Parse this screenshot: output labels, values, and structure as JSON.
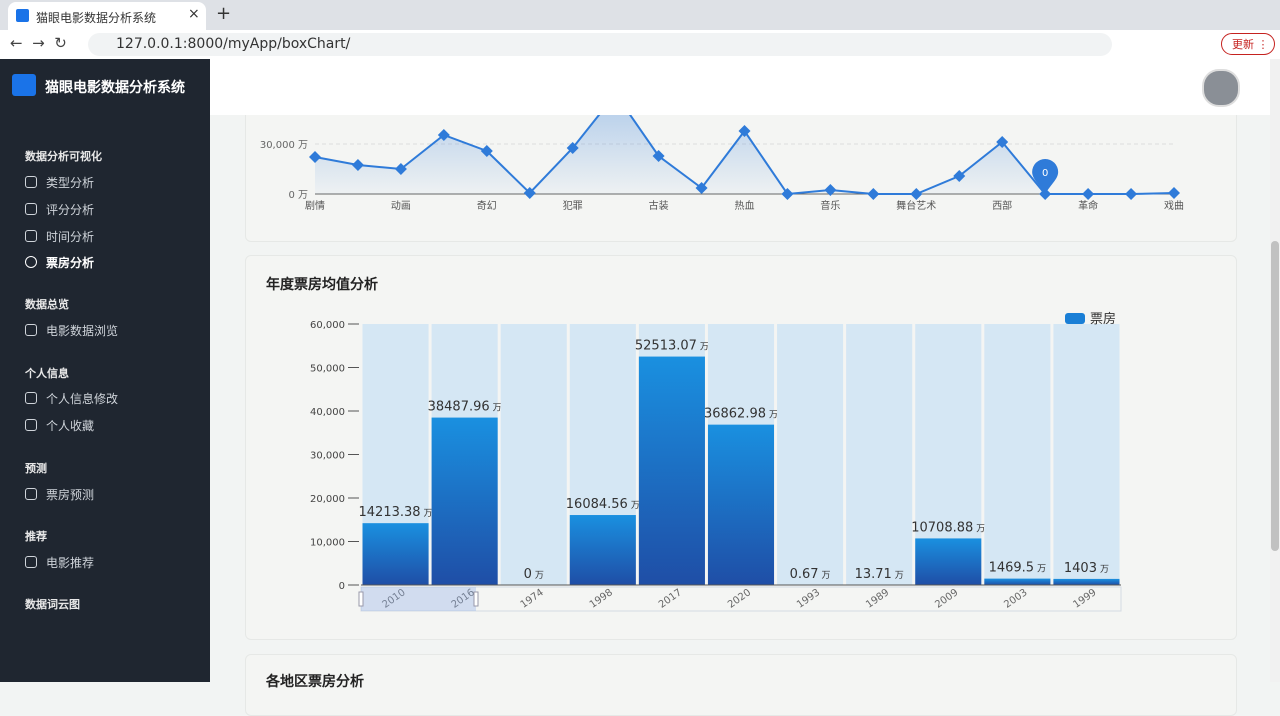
{
  "browser": {
    "tab_title": "猫眼电影数据分析系统",
    "url": "127.0.0.1:8000/myApp/boxChart/",
    "update_button": "更新"
  },
  "sidebar": {
    "brand": "猫眼电影数据分析系统",
    "sections": [
      {
        "title": "数据分析可视化",
        "items": [
          "类型分析",
          "评分分析",
          "时间分析",
          "票房分析"
        ]
      },
      {
        "title": "数据总览",
        "items": [
          "电影数据浏览"
        ]
      },
      {
        "title": "个人信息",
        "items": [
          "个人信息修改",
          "个人收藏"
        ]
      },
      {
        "title": "预测",
        "items": [
          "票房预测"
        ]
      },
      {
        "title": "推荐",
        "items": [
          "电影推荐"
        ]
      },
      {
        "title": "数据词云图",
        "items": []
      }
    ]
  },
  "chart_data": [
    {
      "type": "line",
      "color": "#2f7bd9",
      "categories": [
        "剧情",
        null,
        "动画",
        null,
        "奇幻",
        null,
        "犯罪",
        null,
        "古装",
        null,
        "热血",
        null,
        "音乐",
        null,
        "舞台艺术",
        null,
        "西部",
        null,
        "革命",
        null,
        "戏曲"
      ],
      "values": [
        22200,
        17400,
        15000,
        35400,
        25800,
        600,
        27600,
        60000,
        22800,
        3600,
        37800,
        0,
        2400,
        0,
        0,
        10800,
        31200,
        0,
        0,
        0,
        600
      ],
      "ylim": [
        0,
        48600
      ],
      "yticks": [
        {
          "value": 0,
          "label": "0 万"
        },
        {
          "value": 30000,
          "label": "30,000 万"
        }
      ],
      "grid": true
    },
    {
      "type": "bar",
      "title": "年度票房均值分析",
      "legend": "票房",
      "unit": "万",
      "color": "#1a7fd6",
      "categories": [
        "2010",
        "2016",
        "1974",
        "1998",
        "2017",
        "2020",
        "1993",
        "1989",
        "2009",
        "2003",
        "1999"
      ],
      "values": [
        14213.38,
        38487.96,
        0,
        16084.56,
        52513.07,
        36862.98,
        0.67,
        13.71,
        10708.88,
        1469.5,
        1403
      ],
      "ylim": [
        0,
        60000
      ],
      "yticks": [
        0,
        {
          "value": 10000,
          "label": "10,000"
        },
        {
          "value": 20000,
          "label": "20,000"
        },
        {
          "value": 30000,
          "label": "30,000"
        },
        {
          "value": 40000,
          "label": "40,000"
        },
        {
          "value": 50000,
          "label": "50,000"
        },
        {
          "value": 60000,
          "label": "60,000"
        }
      ],
      "show_background": true
    }
  ],
  "next_section_title": "各地区票房分析"
}
